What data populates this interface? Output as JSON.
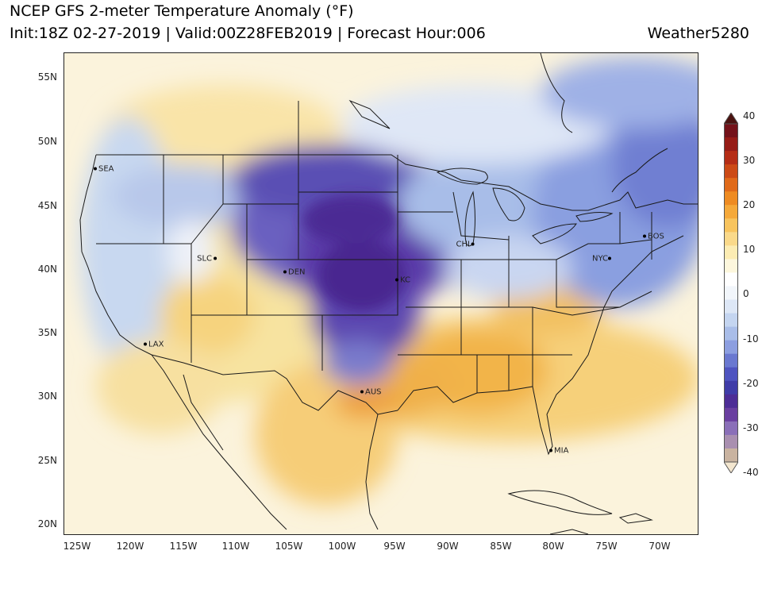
{
  "header": {
    "title": "NCEP GFS 2-meter Temperature Anomaly (°F)",
    "subtitle": "Init:18Z 02-27-2019 | Valid:00Z28FEB2019 | Forecast Hour:006",
    "brand": "Weather5280"
  },
  "axes": {
    "lat_labels": [
      "55N",
      "50N",
      "45N",
      "40N",
      "35N",
      "30N",
      "25N",
      "20N"
    ],
    "lon_labels": [
      "125W",
      "120W",
      "115W",
      "110W",
      "105W",
      "100W",
      "95W",
      "90W",
      "85W",
      "80W",
      "75W",
      "70W"
    ]
  },
  "cities": [
    {
      "name": "SEA"
    },
    {
      "name": "SLC"
    },
    {
      "name": "DEN"
    },
    {
      "name": "KC"
    },
    {
      "name": "CHI"
    },
    {
      "name": "NYC"
    },
    {
      "name": "BOS"
    },
    {
      "name": "LAX"
    },
    {
      "name": "AUS"
    },
    {
      "name": "MIA"
    }
  ],
  "colorbar": {
    "labels": [
      "40",
      "30",
      "20",
      "10",
      "0",
      "-10",
      "-20",
      "-30",
      "-40"
    ],
    "min": -40,
    "max": 40,
    "colors": [
      "#f3e6cf",
      "#c9b3a0",
      "#a98fb0",
      "#8a6fb8",
      "#6a3fa0",
      "#4d2d96",
      "#3f3ca8",
      "#4f54c0",
      "#6a78d0",
      "#8c9ee0",
      "#a9bde8",
      "#c4d5f0",
      "#dde7f6",
      "#f2f6fb",
      "#ffffff",
      "#fdf7dd",
      "#fcecb3",
      "#fad98a",
      "#f8c45e",
      "#f5a93a",
      "#ee8b22",
      "#e06a1a",
      "#cc4a16",
      "#b52d16",
      "#961c17",
      "#74121a",
      "#4a1210"
    ]
  }
}
